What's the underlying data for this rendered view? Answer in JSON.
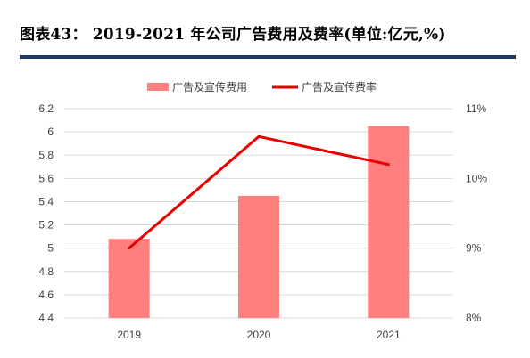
{
  "header": {
    "title": "图表43：  2019-2021 年公司广告费用及费率(单位:亿元,%)"
  },
  "colors": {
    "bar": "#ff7f7f",
    "line": "#e60000",
    "grid": "#d9d9d9",
    "rule": "#1f3864"
  },
  "chart_data": {
    "type": "bar",
    "categories": [
      "2019",
      "2020",
      "2021"
    ],
    "series": [
      {
        "name": "广告及宣传费用",
        "type": "bar",
        "axis": "left",
        "values": [
          5.08,
          5.45,
          6.05
        ]
      },
      {
        "name": "广告及宣传费率",
        "type": "line",
        "axis": "right",
        "values": [
          9.0,
          10.6,
          10.2
        ]
      }
    ],
    "ylim_left": [
      4.4,
      6.2
    ],
    "yticks_left": [
      "6.2",
      "6",
      "5.8",
      "5.6",
      "5.4",
      "5.2",
      "5",
      "4.8",
      "4.6",
      "4.4"
    ],
    "ylim_right": [
      8,
      11
    ],
    "yticks_right": [
      "11%",
      "10%",
      "9%",
      "8%"
    ],
    "grid": true,
    "legend_position": "top-center"
  }
}
